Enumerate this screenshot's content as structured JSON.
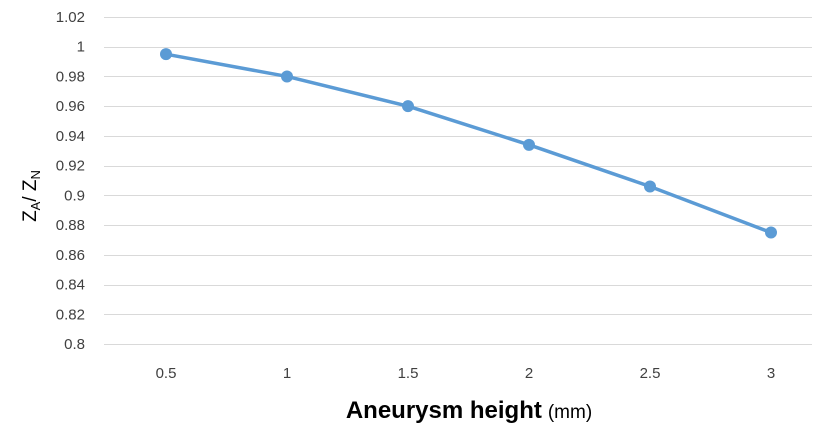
{
  "chart_data": {
    "type": "line",
    "x": [
      0.5,
      1,
      1.5,
      2,
      2.5,
      3
    ],
    "categories": [
      "0.5",
      "1",
      "1.5",
      "2",
      "2.5",
      "3"
    ],
    "series": [
      {
        "name": "",
        "values": [
          0.995,
          0.98,
          0.96,
          0.934,
          0.906,
          0.875
        ]
      }
    ],
    "xlabel": {
      "main": "Aneurysm height",
      "unit": "(mm)"
    },
    "ylabel": {
      "z1": "Z",
      "sub1": "A",
      "slash": "/ ",
      "z2": "Z",
      "sub2": "N"
    },
    "ylim": [
      0.8,
      1.02
    ],
    "yticks": [
      0.8,
      0.82,
      0.84,
      0.86,
      0.88,
      0.9,
      0.92,
      0.94,
      0.96,
      0.98,
      1,
      1.02
    ],
    "ytick_labels": [
      "0.8",
      "0.82",
      "0.84",
      "0.86",
      "0.88",
      "0.9",
      "0.92",
      "0.94",
      "0.96",
      "0.98",
      "1",
      "1.02"
    ],
    "grid": true,
    "legend": "none",
    "colors": {
      "line": "#5B9BD5",
      "grid": "#D9D9D9",
      "tick_text": "#404040",
      "title_text": "#000000"
    }
  }
}
